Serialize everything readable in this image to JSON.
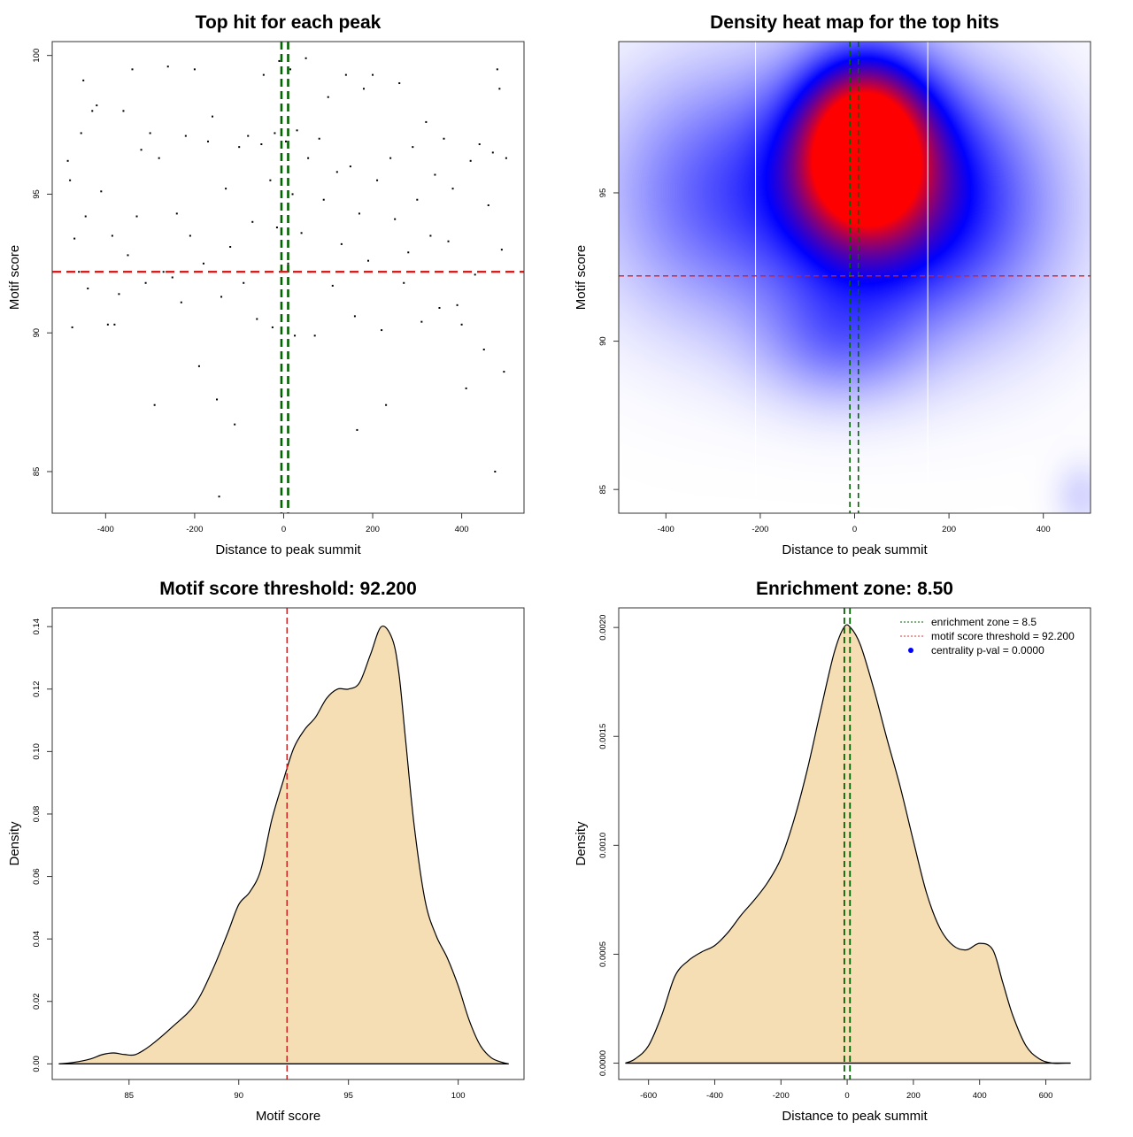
{
  "chart_data": [
    {
      "type": "scatter",
      "title": "Top hit for each peak",
      "xlabel": "Distance to peak summit",
      "ylabel": "Motif score",
      "xlim": [
        -520,
        540
      ],
      "ylim": [
        83.5,
        100.5
      ],
      "xticks": [
        "-400",
        "-200",
        "0",
        "200",
        "400"
      ],
      "yticks": [
        "85",
        "90",
        "95",
        "100"
      ],
      "vlines": [
        -5,
        10
      ],
      "hline": 92.2,
      "points": [
        [
          -485,
          96.2
        ],
        [
          -480,
          95.5
        ],
        [
          -475,
          90.2
        ],
        [
          -470,
          93.4
        ],
        [
          -460,
          92.2
        ],
        [
          -455,
          97.2
        ],
        [
          -450,
          99.1
        ],
        [
          -445,
          94.2
        ],
        [
          -440,
          91.6
        ],
        [
          -430,
          98.0
        ],
        [
          -420,
          98.2
        ],
        [
          -410,
          95.1
        ],
        [
          -395,
          90.3
        ],
        [
          -385,
          93.5
        ],
        [
          -380,
          90.3
        ],
        [
          -370,
          91.4
        ],
        [
          -360,
          98.0
        ],
        [
          -350,
          92.8
        ],
        [
          -340,
          99.5
        ],
        [
          -330,
          94.2
        ],
        [
          -320,
          96.6
        ],
        [
          -310,
          91.8
        ],
        [
          -300,
          97.2
        ],
        [
          -290,
          87.4
        ],
        [
          -280,
          96.3
        ],
        [
          -270,
          92.2
        ],
        [
          -260,
          99.6
        ],
        [
          -250,
          92.0
        ],
        [
          -240,
          94.3
        ],
        [
          -230,
          91.1
        ],
        [
          -220,
          97.1
        ],
        [
          -210,
          93.5
        ],
        [
          -200,
          99.5
        ],
        [
          -190,
          88.8
        ],
        [
          -180,
          92.5
        ],
        [
          -170,
          96.9
        ],
        [
          -160,
          97.8
        ],
        [
          -150,
          87.6
        ],
        [
          -145,
          84.1
        ],
        [
          -140,
          91.3
        ],
        [
          -130,
          95.2
        ],
        [
          -120,
          93.1
        ],
        [
          -110,
          86.7
        ],
        [
          -100,
          96.7
        ],
        [
          -90,
          91.8
        ],
        [
          -80,
          97.1
        ],
        [
          -70,
          94.0
        ],
        [
          -60,
          90.5
        ],
        [
          -50,
          96.8
        ],
        [
          -45,
          99.3
        ],
        [
          -40,
          92.2
        ],
        [
          -30,
          95.5
        ],
        [
          -25,
          90.2
        ],
        [
          -20,
          97.2
        ],
        [
          -15,
          93.8
        ],
        [
          -10,
          99.8
        ],
        [
          -5,
          87.7
        ],
        [
          5,
          96.9
        ],
        [
          10,
          92.5
        ],
        [
          15,
          99.5
        ],
        [
          20,
          95.0
        ],
        [
          25,
          89.9
        ],
        [
          30,
          97.3
        ],
        [
          40,
          93.6
        ],
        [
          50,
          99.9
        ],
        [
          55,
          96.3
        ],
        [
          60,
          92.2
        ],
        [
          70,
          89.9
        ],
        [
          80,
          97.0
        ],
        [
          90,
          94.8
        ],
        [
          100,
          98.5
        ],
        [
          110,
          91.7
        ],
        [
          120,
          95.8
        ],
        [
          130,
          93.2
        ],
        [
          140,
          99.3
        ],
        [
          150,
          96.0
        ],
        [
          160,
          90.6
        ],
        [
          165,
          86.5
        ],
        [
          170,
          94.3
        ],
        [
          180,
          98.8
        ],
        [
          190,
          92.6
        ],
        [
          200,
          99.3
        ],
        [
          210,
          95.5
        ],
        [
          220,
          90.1
        ],
        [
          230,
          87.4
        ],
        [
          240,
          96.3
        ],
        [
          250,
          94.1
        ],
        [
          260,
          99.0
        ],
        [
          270,
          91.8
        ],
        [
          280,
          92.9
        ],
        [
          290,
          96.7
        ],
        [
          300,
          94.8
        ],
        [
          310,
          90.4
        ],
        [
          320,
          97.6
        ],
        [
          330,
          93.5
        ],
        [
          340,
          95.7
        ],
        [
          350,
          90.9
        ],
        [
          360,
          97.0
        ],
        [
          370,
          93.3
        ],
        [
          380,
          95.2
        ],
        [
          390,
          91.0
        ],
        [
          400,
          90.3
        ],
        [
          410,
          88.0
        ],
        [
          420,
          96.2
        ],
        [
          430,
          92.1
        ],
        [
          440,
          96.8
        ],
        [
          450,
          89.4
        ],
        [
          460,
          94.6
        ],
        [
          470,
          96.5
        ],
        [
          475,
          85.0
        ],
        [
          480,
          99.5
        ],
        [
          485,
          98.8
        ],
        [
          490,
          93.0
        ],
        [
          495,
          88.6
        ],
        [
          500,
          96.3
        ]
      ]
    },
    {
      "type": "heatmap",
      "title": "Density heat map for the top hits",
      "xlabel": "Distance to peak summit",
      "ylabel": "Motif score",
      "xlim": [
        -500,
        500
      ],
      "ylim": [
        84.2,
        100.1
      ],
      "xticks": [
        "-400",
        "-200",
        "0",
        "200",
        "400"
      ],
      "yticks": [
        "85",
        "90",
        "95"
      ],
      "vlines": [
        -10,
        8
      ],
      "hline": 92.2,
      "white_lines": [
        -210,
        155
      ],
      "hotspots": [
        {
          "x": 20,
          "y": 96.6,
          "sx": 90,
          "sy": 1.9,
          "w": 1.0
        },
        {
          "x": 30,
          "y": 95.2,
          "sx": 160,
          "sy": 2.8,
          "w": 0.55
        },
        {
          "x": -300,
          "y": 95.0,
          "sx": 170,
          "sy": 3.0,
          "w": 0.28
        },
        {
          "x": 250,
          "y": 94.5,
          "sx": 160,
          "sy": 3.0,
          "w": 0.25
        },
        {
          "x": -30,
          "y": 90.0,
          "sx": 120,
          "sy": 1.5,
          "w": 0.2
        },
        {
          "x": 480,
          "y": 84.8,
          "sx": 40,
          "sy": 0.8,
          "w": 0.08
        }
      ]
    },
    {
      "type": "area",
      "title": "Motif score threshold: 92.200",
      "xlabel": "Motif score",
      "ylabel": "Density",
      "xlim": [
        81.5,
        103.0
      ],
      "ylim": [
        -0.005,
        0.146
      ],
      "xticks": [
        "85",
        "90",
        "95",
        "100"
      ],
      "yticks": [
        "0.00",
        "0.02",
        "0.04",
        "0.06",
        "0.08",
        "0.10",
        "0.12",
        "0.14"
      ],
      "vline": 92.2,
      "x": [
        81.8,
        82.5,
        83.2,
        83.8,
        84.3,
        84.8,
        85.3,
        86.0,
        87.0,
        88.0,
        88.8,
        89.5,
        90.0,
        90.5,
        91.0,
        91.5,
        92.0,
        92.5,
        93.0,
        93.5,
        94.0,
        94.5,
        95.0,
        95.5,
        96.0,
        96.5,
        97.0,
        97.3,
        97.6,
        98.0,
        98.5,
        99.0,
        99.5,
        100.0,
        100.5,
        101.0,
        101.5,
        102.0,
        102.3
      ],
      "y": [
        0.0,
        0.0005,
        0.0015,
        0.003,
        0.0035,
        0.003,
        0.003,
        0.006,
        0.012,
        0.019,
        0.03,
        0.042,
        0.051,
        0.055,
        0.062,
        0.078,
        0.09,
        0.101,
        0.107,
        0.111,
        0.117,
        0.12,
        0.12,
        0.122,
        0.131,
        0.14,
        0.136,
        0.125,
        0.104,
        0.076,
        0.052,
        0.041,
        0.034,
        0.025,
        0.014,
        0.006,
        0.002,
        0.0005,
        0.0
      ]
    },
    {
      "type": "area",
      "title": "Enrichment zone: 8.50",
      "xlabel": "Distance to peak summit",
      "ylabel": "Density",
      "xlim": [
        -690,
        735
      ],
      "ylim": [
        -7.5e-05,
        0.00209
      ],
      "xticks": [
        "-600",
        "-400",
        "-200",
        "0",
        "200",
        "400",
        "600"
      ],
      "yticks": [
        "0.0000",
        "0.0005",
        "0.0010",
        "0.0015",
        "0.0020"
      ],
      "vlines": [
        -8.5,
        8.5
      ],
      "x": [
        -670,
        -640,
        -600,
        -560,
        -520,
        -480,
        -440,
        -400,
        -360,
        -320,
        -280,
        -240,
        -200,
        -160,
        -120,
        -80,
        -40,
        -10,
        10,
        40,
        80,
        120,
        160,
        200,
        240,
        280,
        320,
        360,
        400,
        440,
        470,
        500,
        540,
        580,
        620,
        660,
        675
      ],
      "y": [
        0.0,
        2e-05,
        8e-05,
        0.00022,
        0.0004,
        0.00047,
        0.00051,
        0.00054,
        0.0006,
        0.00068,
        0.00075,
        0.00083,
        0.00094,
        0.00112,
        0.00135,
        0.00162,
        0.00188,
        0.002,
        0.002,
        0.00192,
        0.00172,
        0.00149,
        0.00127,
        0.00102,
        0.00078,
        0.00062,
        0.00054,
        0.00052,
        0.00055,
        0.00052,
        0.00037,
        0.00022,
        8e-05,
        2e-05,
        0.0,
        0.0,
        0.0
      ],
      "legend": [
        {
          "label": "enrichment zone = 8.5",
          "color": "#006400",
          "style": "dotted-line"
        },
        {
          "label": "motif score threshold = 92.200",
          "color": "#e03030",
          "style": "dotted-line"
        },
        {
          "label": "centrality p-val = 0.0000",
          "color": "#0000ff",
          "style": "dot"
        }
      ]
    }
  ]
}
